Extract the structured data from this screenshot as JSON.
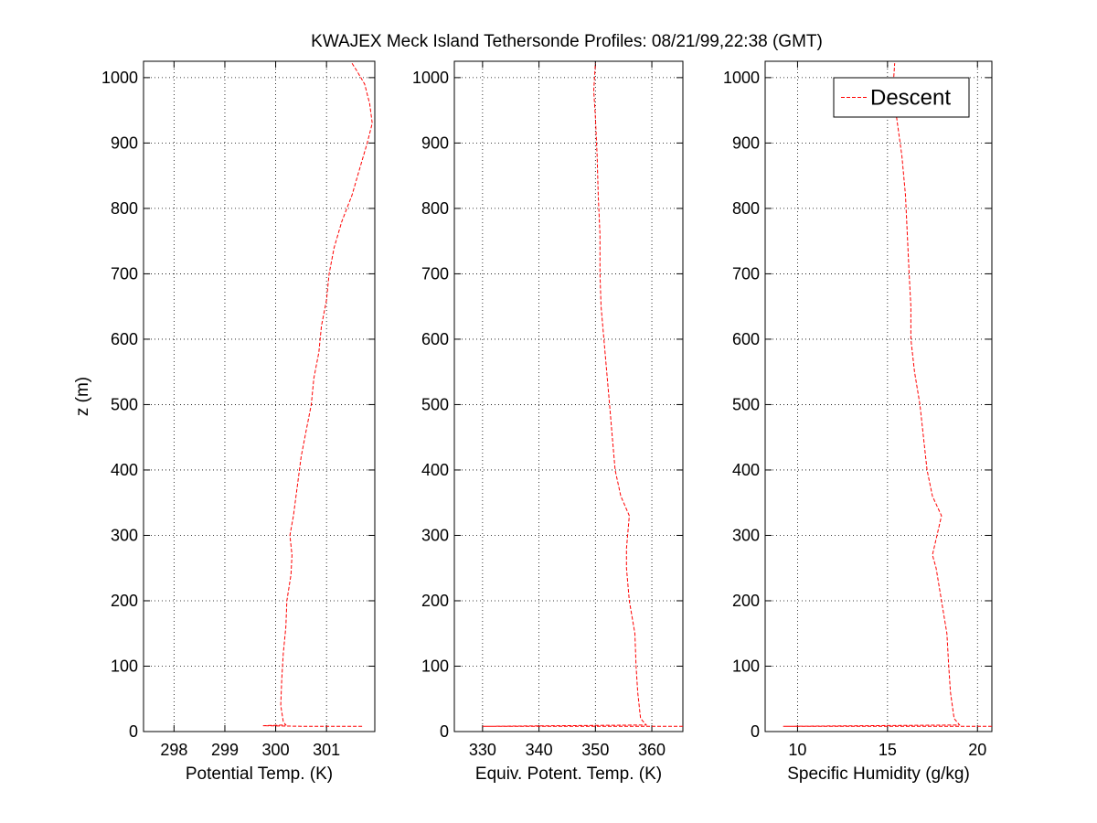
{
  "figure_title": "KWAJEX Meck Island Tethersonde Profiles: 08/21/99,22:38 (GMT)",
  "colors": {
    "trace": "#ff0000",
    "axis": "#000000",
    "grid": "#000000",
    "background": "#ffffff"
  },
  "chart_data": [
    {
      "type": "line",
      "title": "KWAJEX Meck Island Tethersonde Profiles: 08/21/99,22:38 (GMT)",
      "xlabel": "Potential Temp. (K)",
      "ylabel": "z (m)",
      "xlim": [
        297.4,
        301.95
      ],
      "ylim": [
        0,
        1025
      ],
      "xticks": [
        298,
        299,
        300,
        301
      ],
      "yticks": [
        0,
        100,
        200,
        300,
        400,
        500,
        600,
        700,
        800,
        900,
        1000
      ],
      "grid": true,
      "legend": null,
      "series": [
        {
          "name": "Descent",
          "style": "dashed",
          "points": [
            [
              301.7,
              8
            ],
            [
              300.6,
              8
            ],
            [
              299.75,
              9
            ],
            [
              300.2,
              10
            ],
            [
              300.15,
              15
            ],
            [
              300.1,
              40
            ],
            [
              300.12,
              80
            ],
            [
              300.15,
              120
            ],
            [
              300.2,
              160
            ],
            [
              300.22,
              200
            ],
            [
              300.3,
              240
            ],
            [
              300.32,
              270
            ],
            [
              300.28,
              300
            ],
            [
              300.35,
              330
            ],
            [
              300.4,
              360
            ],
            [
              300.45,
              390
            ],
            [
              300.5,
              420
            ],
            [
              300.6,
              460
            ],
            [
              300.7,
              500
            ],
            [
              300.75,
              540
            ],
            [
              300.85,
              580
            ],
            [
              300.9,
              620
            ],
            [
              301.0,
              660
            ],
            [
              301.05,
              700
            ],
            [
              301.15,
              740
            ],
            [
              301.3,
              780
            ],
            [
              301.5,
              820
            ],
            [
              301.65,
              860
            ],
            [
              301.8,
              900
            ],
            [
              301.9,
              930
            ],
            [
              301.85,
              960
            ],
            [
              301.75,
              990
            ],
            [
              301.6,
              1010
            ],
            [
              301.5,
              1022
            ]
          ]
        }
      ]
    },
    {
      "type": "line",
      "xlabel": "Equiv. Potent. Temp. (K)",
      "ylabel": "",
      "xlim": [
        325,
        365.5
      ],
      "ylim": [
        0,
        1025
      ],
      "xticks": [
        330,
        340,
        350,
        360
      ],
      "yticks": [
        0,
        100,
        200,
        300,
        400,
        500,
        600,
        700,
        800,
        900,
        1000
      ],
      "grid": true,
      "legend": null,
      "series": [
        {
          "name": "Descent",
          "style": "dashed",
          "points": [
            [
              365.5,
              8
            ],
            [
              361,
              8
            ],
            [
              330,
              8
            ],
            [
              359,
              10
            ],
            [
              358,
              20
            ],
            [
              357.5,
              60
            ],
            [
              357.2,
              100
            ],
            [
              357,
              150
            ],
            [
              356,
              200
            ],
            [
              355.5,
              250
            ],
            [
              355.5,
              280
            ],
            [
              356,
              330
            ],
            [
              354.5,
              360
            ],
            [
              353.5,
              400
            ],
            [
              353,
              450
            ],
            [
              352.5,
              500
            ],
            [
              352,
              550
            ],
            [
              351.5,
              600
            ],
            [
              351,
              650
            ],
            [
              350.8,
              700
            ],
            [
              350.8,
              760
            ],
            [
              350.5,
              820
            ],
            [
              350.3,
              880
            ],
            [
              350,
              940
            ],
            [
              349.7,
              980
            ],
            [
              350,
              1022
            ]
          ]
        }
      ]
    },
    {
      "type": "line",
      "xlabel": "Specific Humidity (g/kg)",
      "ylabel": "",
      "xlim": [
        8.2,
        20.8
      ],
      "ylim": [
        0,
        1025
      ],
      "xticks": [
        10,
        15,
        20
      ],
      "yticks": [
        0,
        100,
        200,
        300,
        400,
        500,
        600,
        700,
        800,
        900,
        1000
      ],
      "grid": true,
      "legend": {
        "entries": [
          "Descent"
        ],
        "location": "top-right"
      },
      "series": [
        {
          "name": "Descent",
          "style": "dashed",
          "points": [
            [
              20.8,
              8
            ],
            [
              19.5,
              8
            ],
            [
              9.2,
              8
            ],
            [
              19,
              10
            ],
            [
              18.7,
              20
            ],
            [
              18.5,
              60
            ],
            [
              18.4,
              100
            ],
            [
              18.3,
              150
            ],
            [
              18,
              200
            ],
            [
              17.7,
              250
            ],
            [
              17.5,
              270
            ],
            [
              18,
              330
            ],
            [
              17.5,
              360
            ],
            [
              17.2,
              400
            ],
            [
              17,
              450
            ],
            [
              16.8,
              500
            ],
            [
              16.5,
              550
            ],
            [
              16.3,
              600
            ],
            [
              16.3,
              650
            ],
            [
              16.2,
              700
            ],
            [
              16.1,
              760
            ],
            [
              16,
              820
            ],
            [
              15.8,
              880
            ],
            [
              15.5,
              940
            ],
            [
              15.3,
              980
            ],
            [
              15.4,
              1022
            ]
          ]
        }
      ]
    }
  ]
}
